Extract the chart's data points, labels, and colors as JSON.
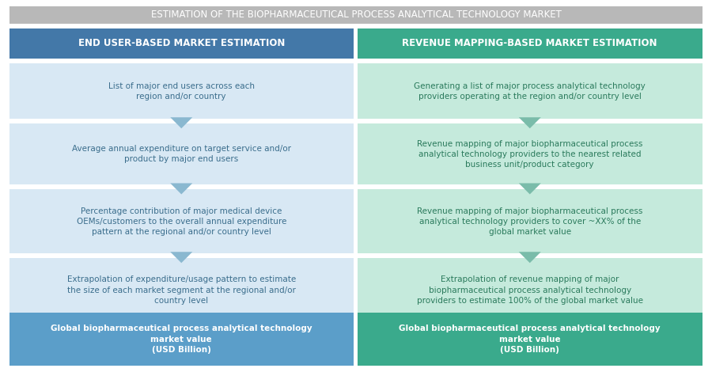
{
  "title": "ESTIMATION OF THE BIOPHARMACEUTICAL PROCESS ANALYTICAL TECHNOLOGY MARKET",
  "title_bg": "#b8b8b8",
  "title_color": "#ffffff",
  "col1_header": "END USER-BASED MARKET ESTIMATION",
  "col2_header": "REVENUE MAPPING-BASED MARKET ESTIMATION",
  "header_bg_left": "#4378a8",
  "header_bg_right": "#3aaa8c",
  "header_text_color": "#ffffff",
  "col1_bg_light": "#d8e8f4",
  "col2_bg_light": "#c5eadc",
  "col1_bg_dark": "#5b9ec9",
  "col2_bg_dark": "#3aaa8c",
  "col1_text": "#3a6d8c",
  "col2_text": "#2a7a5c",
  "arrow_color_left": "#8ab8d0",
  "arrow_color_right": "#7abcaa",
  "rows": [
    {
      "left": "List of major end users across each\nregion and/or country",
      "right": "Generating a list of major process analytical technology\nproviders operating at the region and/or country level"
    },
    {
      "left": "Average annual expenditure on target service and/or\nproduct by major end users",
      "right": "Revenue mapping of major biopharmaceutical process\nanalytical technology providers to the nearest related\nbusiness unit/product category"
    },
    {
      "left": "Percentage contribution of major medical device\nOEMs/customers to the overall annual expenditure\npattern at the regional and/or country level",
      "right": "Revenue mapping of major biopharmaceutical process\nanalytical technology providers to cover ~XX% of the\nglobal market value"
    },
    {
      "left": "Extrapolation of expenditure/usage pattern to estimate\nthe size of each market segment at the regional and/or\ncountry level",
      "right": "Extrapolation of revenue mapping of major\nbiopharmaceutical process analytical technology\nproviders to estimate 100% of the global market value"
    }
  ],
  "footer_left": "Global biopharmaceutical process analytical technology\nmarket value\n(USD Billion)",
  "footer_right": "Global biopharmaceutical process analytical technology\nmarket value\n(USD Billion)",
  "fig_bg": "#ffffff",
  "outer_bg": "#e8e8e8"
}
